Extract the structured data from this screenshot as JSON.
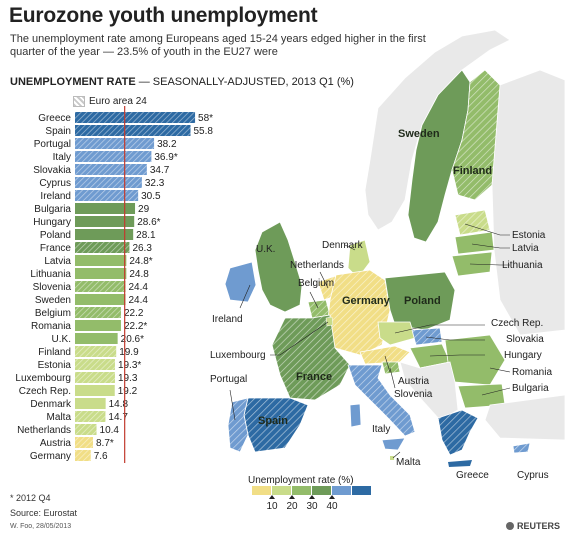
{
  "header": {
    "title": "Eurozone youth unemployment",
    "subtitle": "The unemployment rate among Europeans aged 15-24 years edged higher in the first quarter of the year — 23.5% of youth in the EU27 were",
    "chart_heading_bold": "UNEMPLOYMENT RATE",
    "chart_heading_rest": " — SEASONALLY-ADJUSTED, 2013 Q1 (%)"
  },
  "chart_data": {
    "type": "bar",
    "orientation": "horizontal",
    "title": "UNEMPLOYMENT RATE — SEASONALLY-ADJUSTED, 2013 Q1 (%)",
    "reference_line": {
      "label": "Euro area 24",
      "value": 24
    },
    "categories": [
      "Greece",
      "Spain",
      "Portugal",
      "Italy",
      "Slovakia",
      "Cyprus",
      "Ireland",
      "Bulgaria",
      "Hungary",
      "Poland",
      "France",
      "Latvia",
      "Lithuania",
      "Slovenia",
      "Sweden",
      "Belgium",
      "Romania",
      "U.K.",
      "Finland",
      "Estonia",
      "Luxembourg",
      "Czech Rep.",
      "Denmark",
      "Malta",
      "Netherlands",
      "Austria",
      "Germany"
    ],
    "values": [
      58,
      55.8,
      38.2,
      36.9,
      34.7,
      32.3,
      30.5,
      29,
      28.6,
      28.1,
      26.3,
      24.8,
      24.8,
      24.4,
      24.4,
      22.2,
      22.2,
      20.6,
      19.9,
      19.3,
      19.3,
      19.2,
      14.8,
      14.7,
      10.4,
      8.7,
      7.6
    ],
    "value_labels": [
      "58*",
      "55.8",
      "38.2",
      "36.9*",
      "34.7",
      "32.3",
      "30.5",
      "29",
      "28.6*",
      "28.1",
      "26.3",
      "24.8*",
      "24.8",
      "24.4",
      "24.4",
      "22.2",
      "22.2*",
      "20.6*",
      "19.9",
      "19.3*",
      "19.3",
      "19.2",
      "14.8",
      "14.7",
      "10.4",
      "8.7*",
      "7.6"
    ],
    "euro_area": [
      true,
      true,
      true,
      true,
      true,
      true,
      true,
      false,
      false,
      false,
      true,
      false,
      false,
      true,
      false,
      true,
      false,
      false,
      true,
      true,
      true,
      false,
      false,
      true,
      true,
      true,
      true
    ],
    "xlim": [
      0,
      60
    ],
    "color_scale": {
      "title": "Unemployment rate (%)",
      "ticks": [
        "10",
        "20",
        "30",
        "40"
      ],
      "colors": [
        "#f1de86",
        "#c9dc8a",
        "#93bc6a",
        "#6e9b59",
        "#6f9bd0",
        "#2d6aa3"
      ]
    }
  },
  "map": {
    "labels": [
      {
        "name": "Sweden",
        "inner": true
      },
      {
        "name": "Finland",
        "inner": true
      },
      {
        "name": "Estonia"
      },
      {
        "name": "Latvia"
      },
      {
        "name": "Lithuania"
      },
      {
        "name": "Denmark"
      },
      {
        "name": "U.K."
      },
      {
        "name": "Netherlands"
      },
      {
        "name": "Belgium"
      },
      {
        "name": "Ireland"
      },
      {
        "name": "Germany",
        "inner": true
      },
      {
        "name": "Poland",
        "inner": true
      },
      {
        "name": "Czech Rep."
      },
      {
        "name": "Slovakia"
      },
      {
        "name": "Hungary"
      },
      {
        "name": "Luxembourg"
      },
      {
        "name": "Romania"
      },
      {
        "name": "Bulgaria"
      },
      {
        "name": "Austria"
      },
      {
        "name": "Slovenia"
      },
      {
        "name": "France",
        "inner": true
      },
      {
        "name": "Portugal"
      },
      {
        "name": "Spain",
        "inner": true
      },
      {
        "name": "Italy"
      },
      {
        "name": "Malta"
      },
      {
        "name": "Greece"
      },
      {
        "name": "Cyprus"
      }
    ]
  },
  "footer": {
    "footnote": "* 2012 Q4",
    "source": "Source: Eurostat",
    "credit": "W. Foo, 28/05/2013",
    "brand": "REUTERS"
  }
}
